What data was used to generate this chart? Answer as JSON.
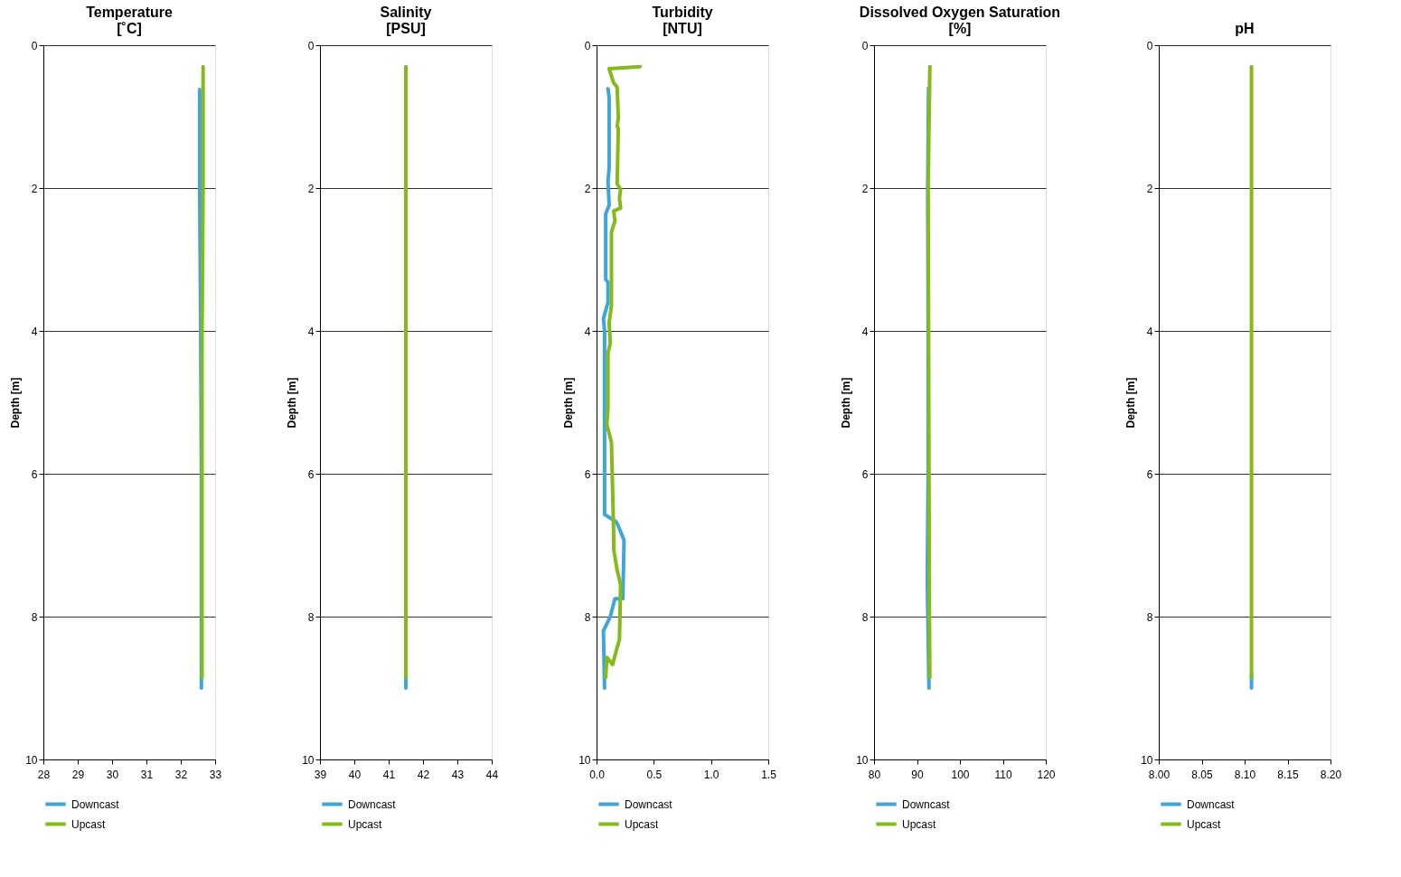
{
  "chart_data": [
    {
      "type": "line",
      "title": "Temperature",
      "subtitle": "[˚C]",
      "ylabel": "Depth [m]",
      "xlim": [
        28,
        33
      ],
      "xticks": [
        28,
        29,
        30,
        31,
        32,
        33
      ],
      "ylim": [
        10,
        0
      ],
      "yticks": [
        0,
        2,
        4,
        6,
        8,
        10
      ],
      "grid": "y",
      "legend": "bottom",
      "line_style": "solid",
      "marker": "none",
      "series": [
        {
          "name": "Downcast",
          "color": "#3fa6da",
          "x": [
            32.55,
            32.55,
            32.58,
            32.6,
            32.6,
            32.6
          ],
          "values": [
            0.62,
            2.0,
            4.0,
            6.0,
            8.0,
            9.0
          ]
        },
        {
          "name": "Upcast",
          "color": "#84bb1a",
          "x": [
            32.65,
            32.65,
            32.62,
            32.62,
            32.62,
            32.62
          ],
          "values": [
            0.3,
            2.0,
            4.0,
            6.0,
            8.0,
            8.85
          ]
        }
      ]
    },
    {
      "type": "line",
      "title": "Salinity",
      "subtitle": "[PSU]",
      "ylabel": "Depth [m]",
      "xlim": [
        39,
        44
      ],
      "xticks": [
        39,
        40,
        41,
        42,
        43,
        44
      ],
      "ylim": [
        10,
        0
      ],
      "yticks": [
        0,
        2,
        4,
        6,
        8,
        10
      ],
      "grid": "y",
      "legend": "bottom",
      "line_style": "solid",
      "marker": "none",
      "series": [
        {
          "name": "Downcast",
          "color": "#3fa6da",
          "x": [
            41.5,
            41.5
          ],
          "values": [
            8.8,
            9.0
          ]
        },
        {
          "name": "Upcast",
          "color": "#84bb1a",
          "x": [
            41.5,
            41.5,
            41.5,
            41.5,
            41.5
          ],
          "values": [
            0.3,
            2.0,
            4.0,
            6.0,
            8.85
          ]
        }
      ]
    },
    {
      "type": "line",
      "title": "Turbidity",
      "subtitle": "[NTU]",
      "ylabel": "Depth [m]",
      "xlim": [
        0,
        1.5
      ],
      "xticks": [
        {
          "value": 0,
          "label": "0.0"
        },
        0.5,
        {
          "value": 1,
          "label": "1.0"
        },
        1.5
      ],
      "ylim": [
        10,
        0
      ],
      "yticks": [
        0,
        2,
        4,
        6,
        8,
        10
      ],
      "grid": "y",
      "legend": "bottom",
      "line_style": "solid",
      "marker": "none",
      "series": [
        {
          "name": "Downcast",
          "color": "#3fa6da",
          "x": [
            0.1,
            0.11,
            0.11,
            0.1,
            0.11,
            0.08,
            0.08,
            0.1,
            0.1,
            0.06,
            0.07,
            0.07,
            0.07,
            0.07,
            0.07,
            0.17,
            0.19,
            0.24,
            0.23,
            0.16,
            0.12,
            0.09,
            0.06,
            0.07
          ],
          "values": [
            0.61,
            0.73,
            1.72,
            1.91,
            2.24,
            2.36,
            3.28,
            3.32,
            3.6,
            3.83,
            4.0,
            4.98,
            5.15,
            5.43,
            6.57,
            6.67,
            6.73,
            6.93,
            7.75,
            7.75,
            8.0,
            8.1,
            8.2,
            9.0
          ]
        },
        {
          "name": "Upcast",
          "color": "#84bb1a",
          "x": [
            0.38,
            0.11,
            0.15,
            0.18,
            0.19,
            0.18,
            0.19,
            0.18,
            0.21,
            0.2,
            0.21,
            0.15,
            0.16,
            0.13,
            0.13,
            0.11,
            0.12,
            0.1,
            0.1,
            0.09,
            0.13,
            0.15,
            0.15,
            0.18,
            0.21,
            0.2,
            0.17,
            0.14,
            0.09,
            0.08
          ],
          "values": [
            0.3,
            0.33,
            0.53,
            0.59,
            1.02,
            1.14,
            1.16,
            1.94,
            2.02,
            2.14,
            2.28,
            2.32,
            2.46,
            2.62,
            3.64,
            3.89,
            4.17,
            4.31,
            5.06,
            5.31,
            5.56,
            6.86,
            7.06,
            7.35,
            7.55,
            8.32,
            8.49,
            8.67,
            8.57,
            8.85
          ]
        }
      ]
    },
    {
      "type": "line",
      "title": "Dissolved Oxygen Saturation",
      "subtitle": "[%]",
      "ylabel": "Depth [m]",
      "xlim": [
        80,
        120
      ],
      "xticks": [
        80,
        90,
        100,
        110,
        120
      ],
      "ylim": [
        10,
        0
      ],
      "yticks": [
        0,
        2,
        4,
        6,
        8,
        10
      ],
      "grid": "y",
      "legend": "bottom",
      "line_style": "solid",
      "marker": "none",
      "series": [
        {
          "name": "Downcast",
          "color": "#3fa6da",
          "x": [
            92.7,
            92.5,
            92.6,
            92.6,
            92.4,
            92.8
          ],
          "values": [
            0.6,
            2.0,
            4.0,
            6.0,
            7.5,
            9.0
          ]
        },
        {
          "name": "Upcast",
          "color": "#84bb1a",
          "x": [
            93.0,
            92.6,
            92.7,
            92.8,
            92.9,
            93.0
          ],
          "values": [
            0.3,
            2.0,
            4.0,
            6.0,
            8.0,
            8.85
          ]
        }
      ]
    },
    {
      "type": "line",
      "title": "pH",
      "ylabel": "Depth [m]",
      "xlim": [
        8.0,
        8.2
      ],
      "xticks": [
        {
          "value": 8.0,
          "label": "8.00"
        },
        8.05,
        {
          "value": 8.1,
          "label": "8.10"
        },
        8.15,
        {
          "value": 8.2,
          "label": "8.20"
        }
      ],
      "ylim": [
        10,
        0
      ],
      "yticks": [
        0,
        2,
        4,
        6,
        8,
        10
      ],
      "grid": "y",
      "legend": "bottom",
      "line_style": "solid",
      "marker": "none",
      "series": [
        {
          "name": "Downcast",
          "color": "#3fa6da",
          "x": [
            8.108,
            8.108
          ],
          "values": [
            8.8,
            9.0
          ]
        },
        {
          "name": "Upcast",
          "color": "#84bb1a",
          "x": [
            8.108,
            8.108,
            8.108,
            8.108,
            8.108
          ],
          "values": [
            0.3,
            2.0,
            4.0,
            6.0,
            8.85
          ]
        }
      ]
    }
  ]
}
